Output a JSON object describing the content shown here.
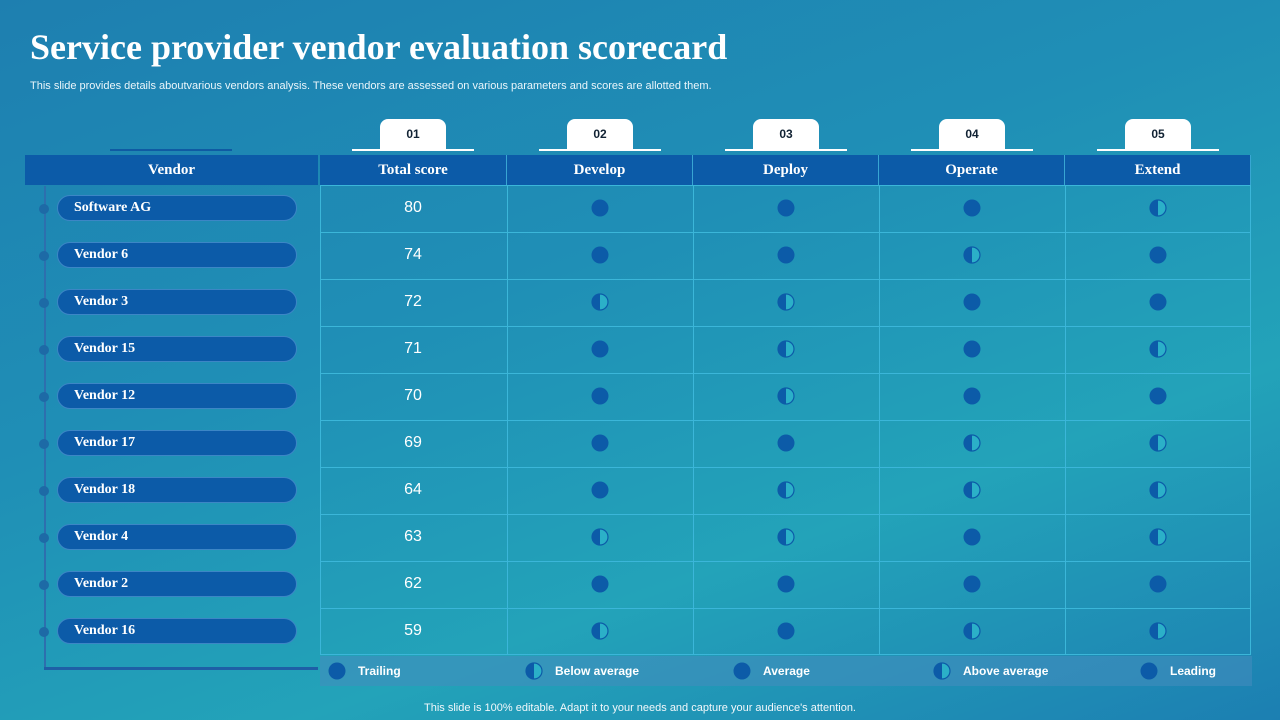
{
  "title": "Service provider vendor evaluation scorecard",
  "subtitle": "This slide provides details aboutvarious vendors analysis. These vendors are assessed on various parameters and scores are allotted them.",
  "vendor_header": "Vendor",
  "tabs": [
    "01",
    "02",
    "03",
    "04",
    "05"
  ],
  "columns": [
    "Total score",
    "Develop",
    "Deploy",
    "Operate",
    "Extend"
  ],
  "rows": [
    {
      "vendor": "Software AG",
      "score": "80",
      "ratings": [
        "average",
        "average",
        "average",
        "below_average"
      ]
    },
    {
      "vendor": "Vendor 6",
      "score": "74",
      "ratings": [
        "average",
        "average",
        "below_average",
        "average"
      ]
    },
    {
      "vendor": "Vendor 3",
      "score": "72",
      "ratings": [
        "below_average",
        "below_average",
        "average",
        "average"
      ]
    },
    {
      "vendor": "Vendor 15",
      "score": "71",
      "ratings": [
        "average",
        "below_average",
        "average",
        "below_average"
      ]
    },
    {
      "vendor": "Vendor 12",
      "score": "70",
      "ratings": [
        "average",
        "below_average",
        "average",
        "average"
      ]
    },
    {
      "vendor": "Vendor 17",
      "score": "69",
      "ratings": [
        "average",
        "average",
        "below_average",
        "below_average"
      ]
    },
    {
      "vendor": "Vendor 18",
      "score": "64",
      "ratings": [
        "average",
        "below_average",
        "below_average",
        "below_average"
      ]
    },
    {
      "vendor": "Vendor 4",
      "score": "63",
      "ratings": [
        "below_average",
        "below_average",
        "average",
        "below_average"
      ]
    },
    {
      "vendor": "Vendor 2",
      "score": "62",
      "ratings": [
        "average",
        "average",
        "average",
        "average"
      ]
    },
    {
      "vendor": "Vendor 16",
      "score": "59",
      "ratings": [
        "below_average",
        "average",
        "below_average",
        "below_average"
      ]
    }
  ],
  "legend": [
    {
      "label": "Trailing",
      "icon": "trailing-icon"
    },
    {
      "label": "Below average",
      "icon": "below-average-icon"
    },
    {
      "label": "Average",
      "icon": "average-icon"
    },
    {
      "label": "Above average",
      "icon": "above-average-icon"
    },
    {
      "label": "Leading",
      "icon": "leading-icon"
    }
  ],
  "colors": {
    "dark_blue": "#0c5ba8",
    "teal_half": "#2bb0c8",
    "grid": "#3bb6d9"
  },
  "footer": "This slide is 100% editable. Adapt it to your needs and capture your audience's attention."
}
